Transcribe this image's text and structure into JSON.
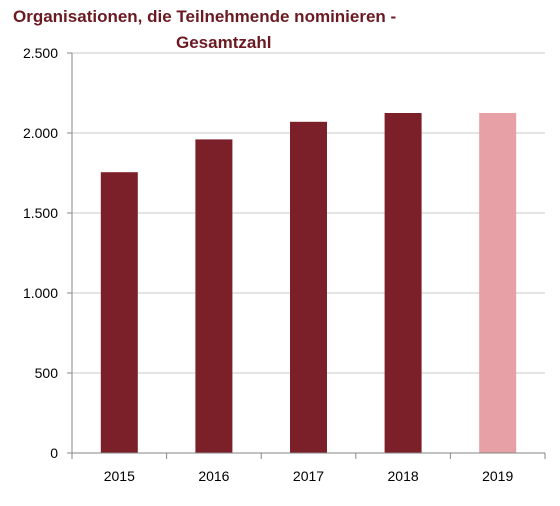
{
  "chart_data": {
    "type": "bar",
    "title_line1": "Organisationen, die Teilnehmende nominieren -",
    "title_line2": "Gesamtzahl",
    "categories": [
      "2015",
      "2016",
      "2017",
      "2018",
      "2019"
    ],
    "values": [
      1755,
      1960,
      2070,
      2125,
      2125
    ],
    "bar_colors": [
      "#7b1f28",
      "#7b1f28",
      "#7b1f28",
      "#7b1f28",
      "#e6a0a6"
    ],
    "ylim": [
      0,
      2500
    ],
    "yticks": [
      0,
      500,
      1000,
      1500,
      2000,
      2500
    ],
    "ytick_labels": [
      "0",
      "500",
      "1.000",
      "1.500",
      "2.000",
      "2.500"
    ],
    "grid": true,
    "grid_color": "#c8c8c8",
    "xlabel": "",
    "ylabel": ""
  }
}
